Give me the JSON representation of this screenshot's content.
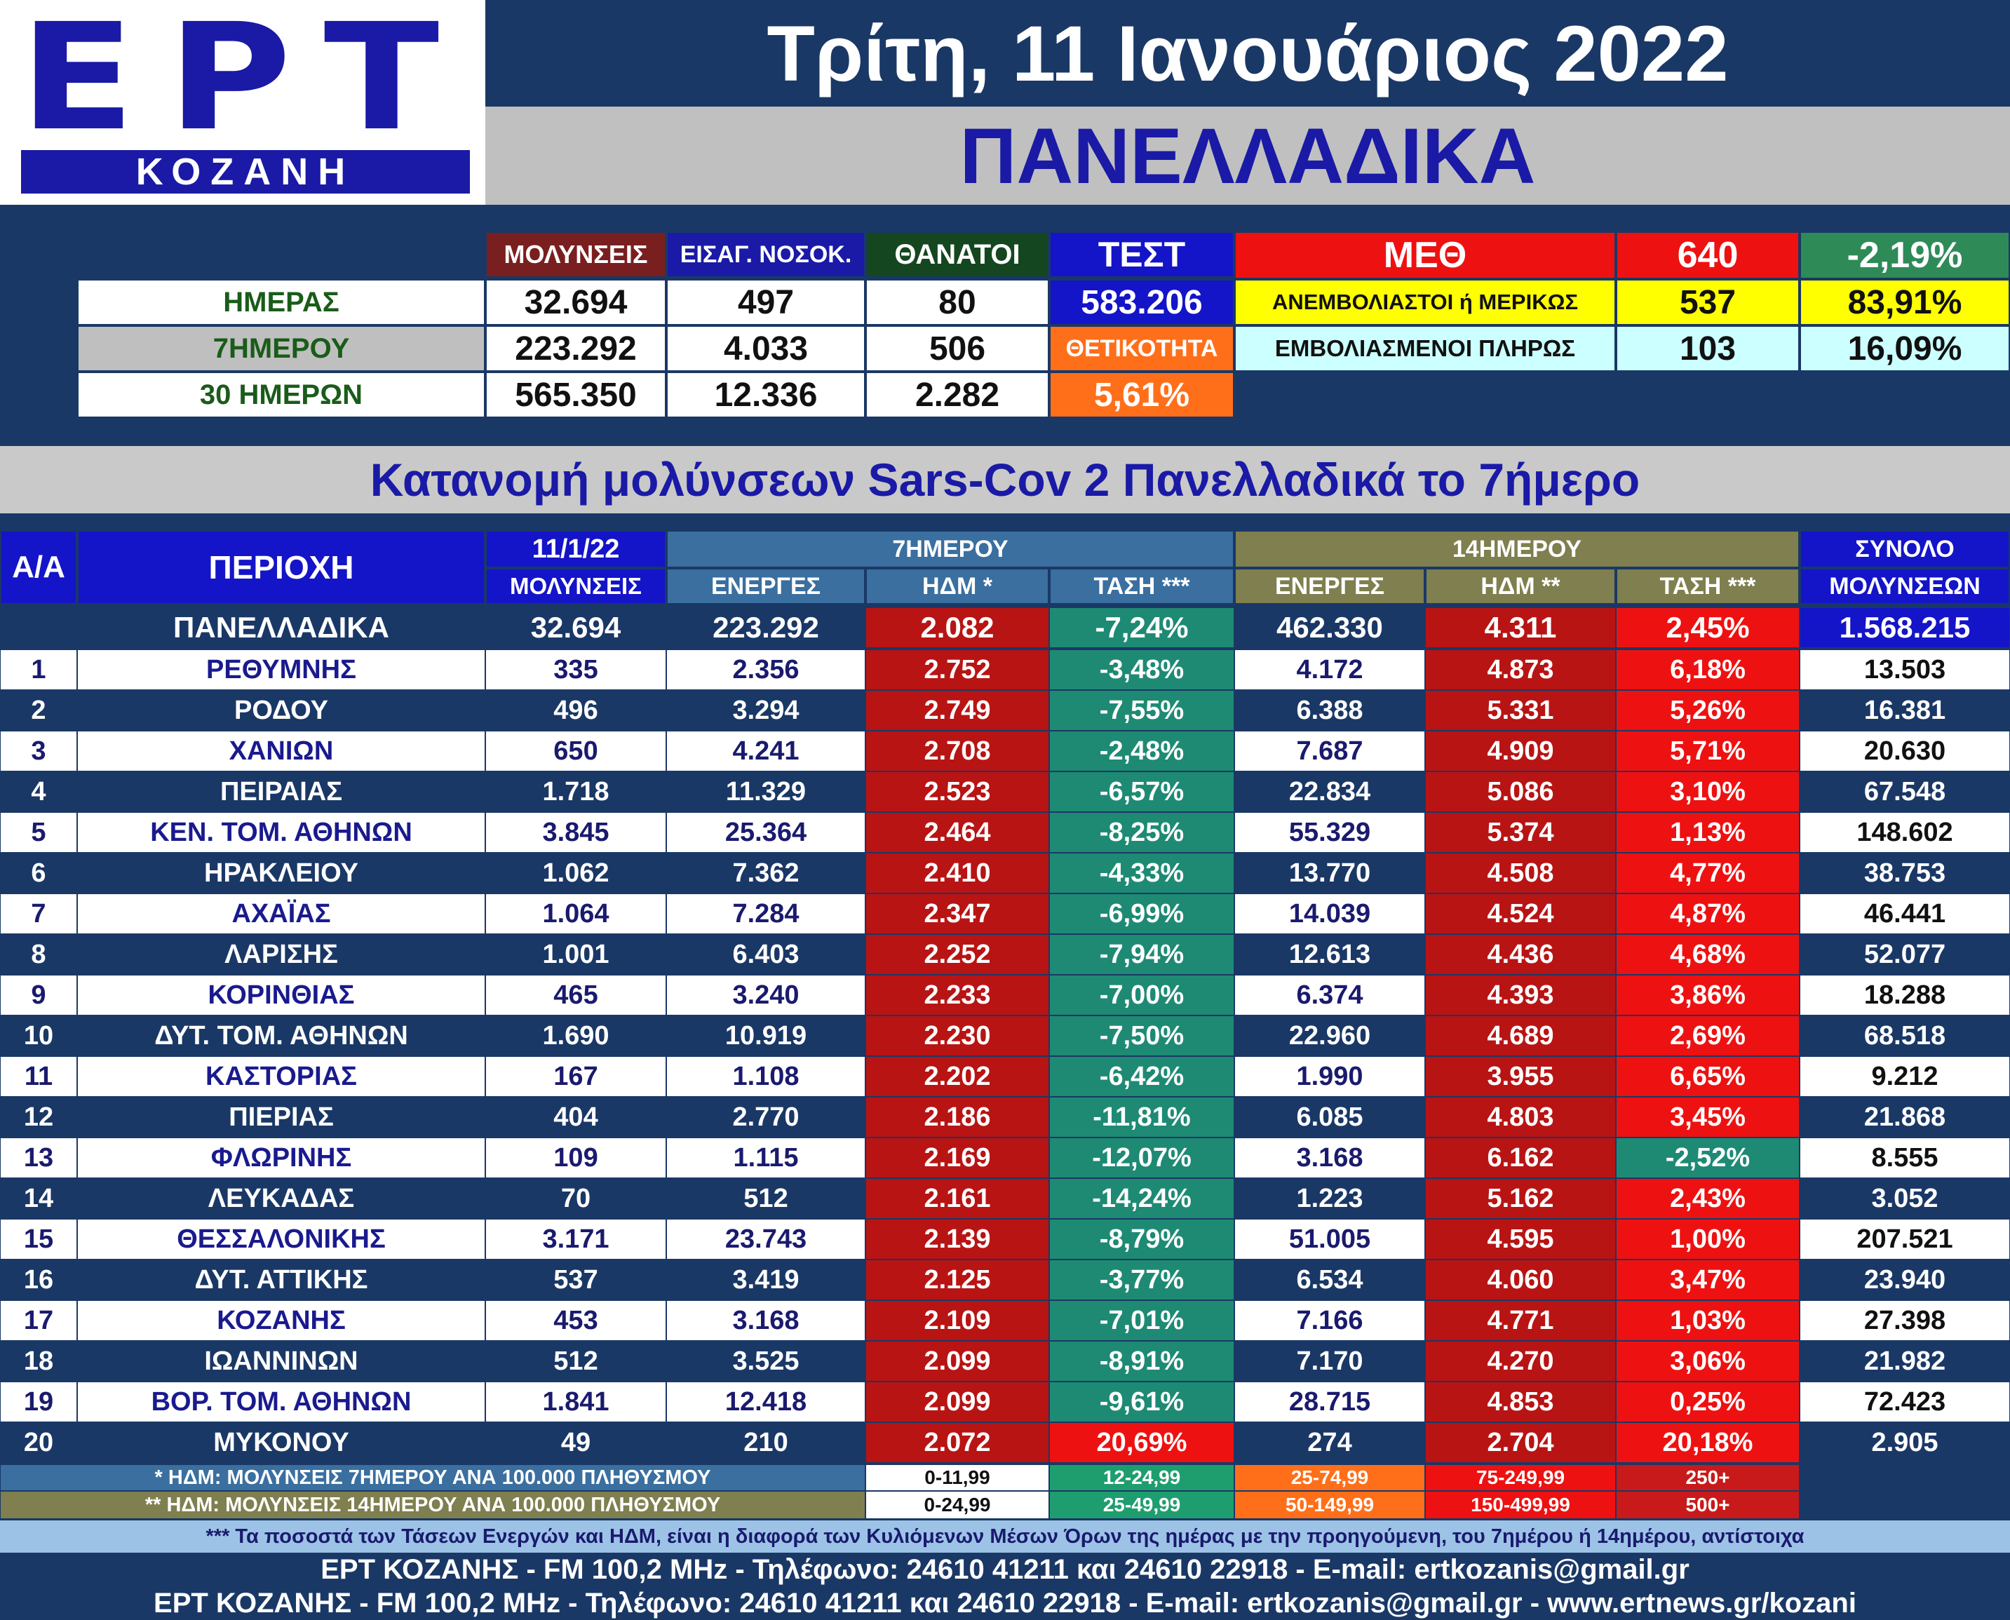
{
  "logo": {
    "brand": "ΕΡΤ",
    "city": "ΚΟΖΑΝΗ"
  },
  "header": {
    "date": "Τρίτη, 11 Ιανουάριος 2022",
    "region": "ΠΑΝΕΛΛΑΔΙΚΑ"
  },
  "summary": {
    "col_headers": {
      "cases": "ΜΟΛΥΝΣΕΙΣ",
      "admissions": "ΕΙΣΑΓ. ΝΟΣΟΚ.",
      "deaths": "ΘΑΝΑΤΟΙ",
      "tests": "ΤΕΣΤ"
    },
    "rows": [
      {
        "label": "ΗΜΕΡΑΣ",
        "cases": "32.694",
        "admissions": "497",
        "deaths": "80",
        "tests": "583.206"
      },
      {
        "label": "7ΗΜΕΡΟΥ",
        "cases": "223.292",
        "admissions": "4.033",
        "deaths": "506"
      },
      {
        "label": "30 ΗΜΕΡΩΝ",
        "cases": "565.350",
        "admissions": "12.336",
        "deaths": "2.282"
      }
    ],
    "positivity_label": "ΘΕΤΙΚΟΤΗΤΑ",
    "positivity_value": "5,61%",
    "icu": {
      "label": "ΜΕΘ",
      "count": "640",
      "change": "-2,19%",
      "unvacc_label": "ΑΝΕΜΒΟΛΙΑΣΤΟΙ ή ΜΕΡΙΚΩΣ",
      "unvacc_count": "537",
      "unvacc_pct": "83,91%",
      "vacc_label": "ΕΜΒΟΛΙΑΣΜΕΝΟΙ ΠΛΗΡΩΣ",
      "vacc_count": "103",
      "vacc_pct": "16,09%"
    }
  },
  "table": {
    "title": "Κατανομή μολύνσεων Sars-Cov 2 Πανελλαδικά το 7ήμερο",
    "headers": {
      "aa": "Α/Α",
      "area": "ΠΕΡΙΟΧΗ",
      "date": "11/1/22",
      "cases": "ΜΟΛΥΝΣΕΙΣ",
      "group7": "7ΗΜΕΡΟΥ",
      "active7": "ΕΝΕΡΓΕΣ",
      "hdm7": "ΗΔΜ *",
      "trend7": "ΤΑΣΗ ***",
      "group14": "14ΗΜΕΡΟΥ",
      "active14": "ΕΝΕΡΓΕΣ",
      "hdm14": "ΗΔΜ **",
      "trend14": "ΤΑΣΗ ***",
      "total1": "ΣΥΝΟΛΟ",
      "total2": "ΜΟΛΥΝΣΕΩΝ"
    },
    "national": {
      "name": "ΠΑΝΕΛΛΑΔΙΚΑ",
      "cases": "32.694",
      "active7": "223.292",
      "hdm7": "2.082",
      "trend7": "-7,24%",
      "active14": "462.330",
      "hdm14": "4.311",
      "trend14": "2,45%",
      "total": "1.568.215"
    },
    "rows": [
      {
        "aa": "1",
        "name": "ΡΕΘΥΜΝΗΣ",
        "cases": "335",
        "active7": "2.356",
        "hdm7": "2.752",
        "trend7": "-3,48%",
        "active14": "4.172",
        "hdm14": "4.873",
        "trend14": "6,18%",
        "total": "13.503"
      },
      {
        "aa": "2",
        "name": "ΡΟΔΟΥ",
        "cases": "496",
        "active7": "3.294",
        "hdm7": "2.749",
        "trend7": "-7,55%",
        "active14": "6.388",
        "hdm14": "5.331",
        "trend14": "5,26%",
        "total": "16.381"
      },
      {
        "aa": "3",
        "name": "ΧΑΝΙΩΝ",
        "cases": "650",
        "active7": "4.241",
        "hdm7": "2.708",
        "trend7": "-2,48%",
        "active14": "7.687",
        "hdm14": "4.909",
        "trend14": "5,71%",
        "total": "20.630"
      },
      {
        "aa": "4",
        "name": "ΠΕΙΡΑΙΑΣ",
        "cases": "1.718",
        "active7": "11.329",
        "hdm7": "2.523",
        "trend7": "-6,57%",
        "active14": "22.834",
        "hdm14": "5.086",
        "trend14": "3,10%",
        "total": "67.548"
      },
      {
        "aa": "5",
        "name": "ΚΕΝ. ΤΟΜ. ΑΘΗΝΩΝ",
        "cases": "3.845",
        "active7": "25.364",
        "hdm7": "2.464",
        "trend7": "-8,25%",
        "active14": "55.329",
        "hdm14": "5.374",
        "trend14": "1,13%",
        "total": "148.602"
      },
      {
        "aa": "6",
        "name": "ΗΡΑΚΛΕΙΟΥ",
        "cases": "1.062",
        "active7": "7.362",
        "hdm7": "2.410",
        "trend7": "-4,33%",
        "active14": "13.770",
        "hdm14": "4.508",
        "trend14": "4,77%",
        "total": "38.753"
      },
      {
        "aa": "7",
        "name": "ΑΧΑΪΑΣ",
        "cases": "1.064",
        "active7": "7.284",
        "hdm7": "2.347",
        "trend7": "-6,99%",
        "active14": "14.039",
        "hdm14": "4.524",
        "trend14": "4,87%",
        "total": "46.441"
      },
      {
        "aa": "8",
        "name": "ΛΑΡΙΣΗΣ",
        "cases": "1.001",
        "active7": "6.403",
        "hdm7": "2.252",
        "trend7": "-7,94%",
        "active14": "12.613",
        "hdm14": "4.436",
        "trend14": "4,68%",
        "total": "52.077"
      },
      {
        "aa": "9",
        "name": "ΚΟΡΙΝΘΙΑΣ",
        "cases": "465",
        "active7": "3.240",
        "hdm7": "2.233",
        "trend7": "-7,00%",
        "active14": "6.374",
        "hdm14": "4.393",
        "trend14": "3,86%",
        "total": "18.288"
      },
      {
        "aa": "10",
        "name": "ΔΥΤ. ΤΟΜ. ΑΘΗΝΩΝ",
        "cases": "1.690",
        "active7": "10.919",
        "hdm7": "2.230",
        "trend7": "-7,50%",
        "active14": "22.960",
        "hdm14": "4.689",
        "trend14": "2,69%",
        "total": "68.518"
      },
      {
        "aa": "11",
        "name": "ΚΑΣΤΟΡΙΑΣ",
        "cases": "167",
        "active7": "1.108",
        "hdm7": "2.202",
        "trend7": "-6,42%",
        "active14": "1.990",
        "hdm14": "3.955",
        "trend14": "6,65%",
        "total": "9.212"
      },
      {
        "aa": "12",
        "name": "ΠΙΕΡΙΑΣ",
        "cases": "404",
        "active7": "2.770",
        "hdm7": "2.186",
        "trend7": "-11,81%",
        "active14": "6.085",
        "hdm14": "4.803",
        "trend14": "3,45%",
        "total": "21.868"
      },
      {
        "aa": "13",
        "name": "ΦΛΩΡΙΝΗΣ",
        "cases": "109",
        "active7": "1.115",
        "hdm7": "2.169",
        "trend7": "-12,07%",
        "active14": "3.168",
        "hdm14": "6.162",
        "trend14": "-2,52%",
        "total": "8.555"
      },
      {
        "aa": "14",
        "name": "ΛΕΥΚΑΔΑΣ",
        "cases": "70",
        "active7": "512",
        "hdm7": "2.161",
        "trend7": "-14,24%",
        "active14": "1.223",
        "hdm14": "5.162",
        "trend14": "2,43%",
        "total": "3.052"
      },
      {
        "aa": "15",
        "name": "ΘΕΣΣΑΛΟΝΙΚΗΣ",
        "cases": "3.171",
        "active7": "23.743",
        "hdm7": "2.139",
        "trend7": "-8,79%",
        "active14": "51.005",
        "hdm14": "4.595",
        "trend14": "1,00%",
        "total": "207.521"
      },
      {
        "aa": "16",
        "name": "ΔΥΤ. ΑΤΤΙΚΗΣ",
        "cases": "537",
        "active7": "3.419",
        "hdm7": "2.125",
        "trend7": "-3,77%",
        "active14": "6.534",
        "hdm14": "4.060",
        "trend14": "3,47%",
        "total": "23.940"
      },
      {
        "aa": "17",
        "name": "ΚΟΖΑΝΗΣ",
        "cases": "453",
        "active7": "3.168",
        "hdm7": "2.109",
        "trend7": "-7,01%",
        "active14": "7.166",
        "hdm14": "4.771",
        "trend14": "1,03%",
        "total": "27.398"
      },
      {
        "aa": "18",
        "name": "ΙΩΑΝΝΙΝΩΝ",
        "cases": "512",
        "active7": "3.525",
        "hdm7": "2.099",
        "trend7": "-8,91%",
        "active14": "7.170",
        "hdm14": "4.270",
        "trend14": "3,06%",
        "total": "21.982"
      },
      {
        "aa": "19",
        "name": "ΒΟΡ. ΤΟΜ. ΑΘΗΝΩΝ",
        "cases": "1.841",
        "active7": "12.418",
        "hdm7": "2.099",
        "trend7": "-9,61%",
        "active14": "28.715",
        "hdm14": "4.853",
        "trend14": "0,25%",
        "total": "72.423"
      },
      {
        "aa": "20",
        "name": "ΜΥΚΟΝΟΥ",
        "cases": "49",
        "active7": "210",
        "hdm7": "2.072",
        "trend7": "20,69%",
        "active14": "274",
        "hdm14": "2.704",
        "trend14": "20,18%",
        "total": "2.905"
      }
    ]
  },
  "legend": {
    "note7": "* ΗΔΜ: ΜΟΛΥΝΣΕΙΣ 7ΗΜΕΡΟΥ ΑΝΑ 100.000 ΠΛΗΘΥΣΜΟΥ",
    "note14": "** ΗΔΜ: ΜΟΛΥΝΣΕΙΣ 14ΗΜΕΡΟΥ ΑΝΑ 100.000 ΠΛΗΘΥΣΜΟΥ",
    "ranges7": [
      "0-11,99",
      "12-24,99",
      "25-74,99",
      "75-249,99",
      "250+"
    ],
    "ranges14": [
      "0-24,99",
      "25-49,99",
      "50-149,99",
      "150-499,99",
      "500+"
    ],
    "colors": [
      "#ffffff",
      "#1e9e6e",
      "#ff6f1a",
      "#ee1111",
      "#c81a1a"
    ]
  },
  "footer": {
    "note": "*** Τα ποσοστά των Τάσεων Ενεργών και ΗΔΜ, είναι η διαφορά των Κυλιόμενων Μέσων Όρων της ημέρας με την προηγούμενη, του 7ημέρου ή 14ημέρου, αντίστοιχα",
    "line1": "ΕΡΤ ΚΟΖΑΝΗΣ - FM 100,2 MHz - Τηλέφωνο:  24610 41211 και 24610 22918 - E-mail: ertkozanis@gmail.gr",
    "line2": "ΕΡΤ ΚΟΖΑΝΗΣ - FM 100,2 MHz - Τηλέφωνο:  24610 41211 και 24610 22918 - E-mail: ertkozanis@gmail.gr - www.ertnews.gr/kozani"
  },
  "colors": {
    "navy": "#1a3866",
    "blue": "#1a1aa6",
    "maroon": "#7a1f1f",
    "dark_green": "#14471f",
    "test_blue": "#1414c8",
    "orange": "#ff6f1a",
    "red": "#ee1111",
    "icu_green": "#2e8b57",
    "yellow": "#ffff00",
    "light_cyan": "#ccffff",
    "steel_blue": "#3a6f9f",
    "olive": "#7f7f4f",
    "dark_red": "#b81414",
    "teal": "#1e8a74",
    "trend_red": "#ee1111"
  }
}
